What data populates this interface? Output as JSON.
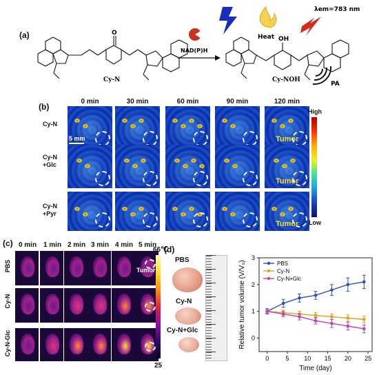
{
  "panel_a": {
    "label": "(a)",
    "reactant_name": "Cy-N",
    "product_name": "Cy-NOH",
    "reagent": "NAD(P)H",
    "outputs": {
      "heat": "Heat",
      "emission": "λem=783 nm",
      "pa": "PA"
    },
    "atom_O": "O",
    "atom_OH": "OH"
  },
  "panel_b": {
    "label": "(b)",
    "time_points": [
      "0 min",
      "30 min",
      "60 min",
      "90 min",
      "120 min"
    ],
    "rows": [
      {
        "line1": "Cy-N",
        "line2": ""
      },
      {
        "line1": "Cy-N",
        "line2": "+Glc"
      },
      {
        "line1": "Cy-N",
        "line2": "+Pyr"
      }
    ],
    "scale_bar": "5 mm",
    "tumor_label": "Tumor",
    "colorbar_high": "High",
    "colorbar_low": "Low"
  },
  "panel_c": {
    "label": "(c)",
    "time_points": [
      "0 min",
      "1 min",
      "2 min",
      "3 min",
      "4 min",
      "5 min"
    ],
    "rows": [
      "PBS",
      "Cy-N",
      "Cy-N-Glc"
    ],
    "tumor_label": "Tumor",
    "colorbar_max": "66℃",
    "colorbar_min": "25"
  },
  "panel_d": {
    "label": "(d)",
    "photo_labels": [
      "PBS",
      "Cy-N",
      "Cy-N+Glc"
    ]
  },
  "chart_data": {
    "type": "line",
    "xlabel": "Time (day)",
    "ylabel": "Relative tumor volume (V/V₀)",
    "xlim": [
      -2,
      26
    ],
    "ylim": [
      -0.5,
      3
    ],
    "xticks": [
      0,
      5,
      10,
      15,
      20,
      25
    ],
    "yticks": [
      0,
      1,
      2,
      3
    ],
    "legend_position": "top-left",
    "x": [
      0,
      4,
      8,
      12,
      16,
      20,
      24
    ],
    "series": [
      {
        "name": "PBS",
        "color": "#2a4fbf",
        "values": [
          1.0,
          1.3,
          1.5,
          1.6,
          1.8,
          2.0,
          2.1
        ],
        "errors": [
          0.1,
          0.15,
          0.15,
          0.15,
          0.2,
          0.25,
          0.25
        ]
      },
      {
        "name": "Cy-N",
        "color": "#d9a21a",
        "values": [
          1.0,
          0.95,
          0.9,
          0.85,
          0.8,
          0.75,
          0.7
        ],
        "errors": [
          0.08,
          0.1,
          0.1,
          0.1,
          0.1,
          0.12,
          0.12
        ]
      },
      {
        "name": "Cy-N+Glc",
        "color": "#c040b0",
        "values": [
          1.0,
          0.9,
          0.8,
          0.65,
          0.55,
          0.45,
          0.35
        ],
        "errors": [
          0.08,
          0.1,
          0.12,
          0.12,
          0.15,
          0.15,
          0.15
        ]
      }
    ]
  }
}
